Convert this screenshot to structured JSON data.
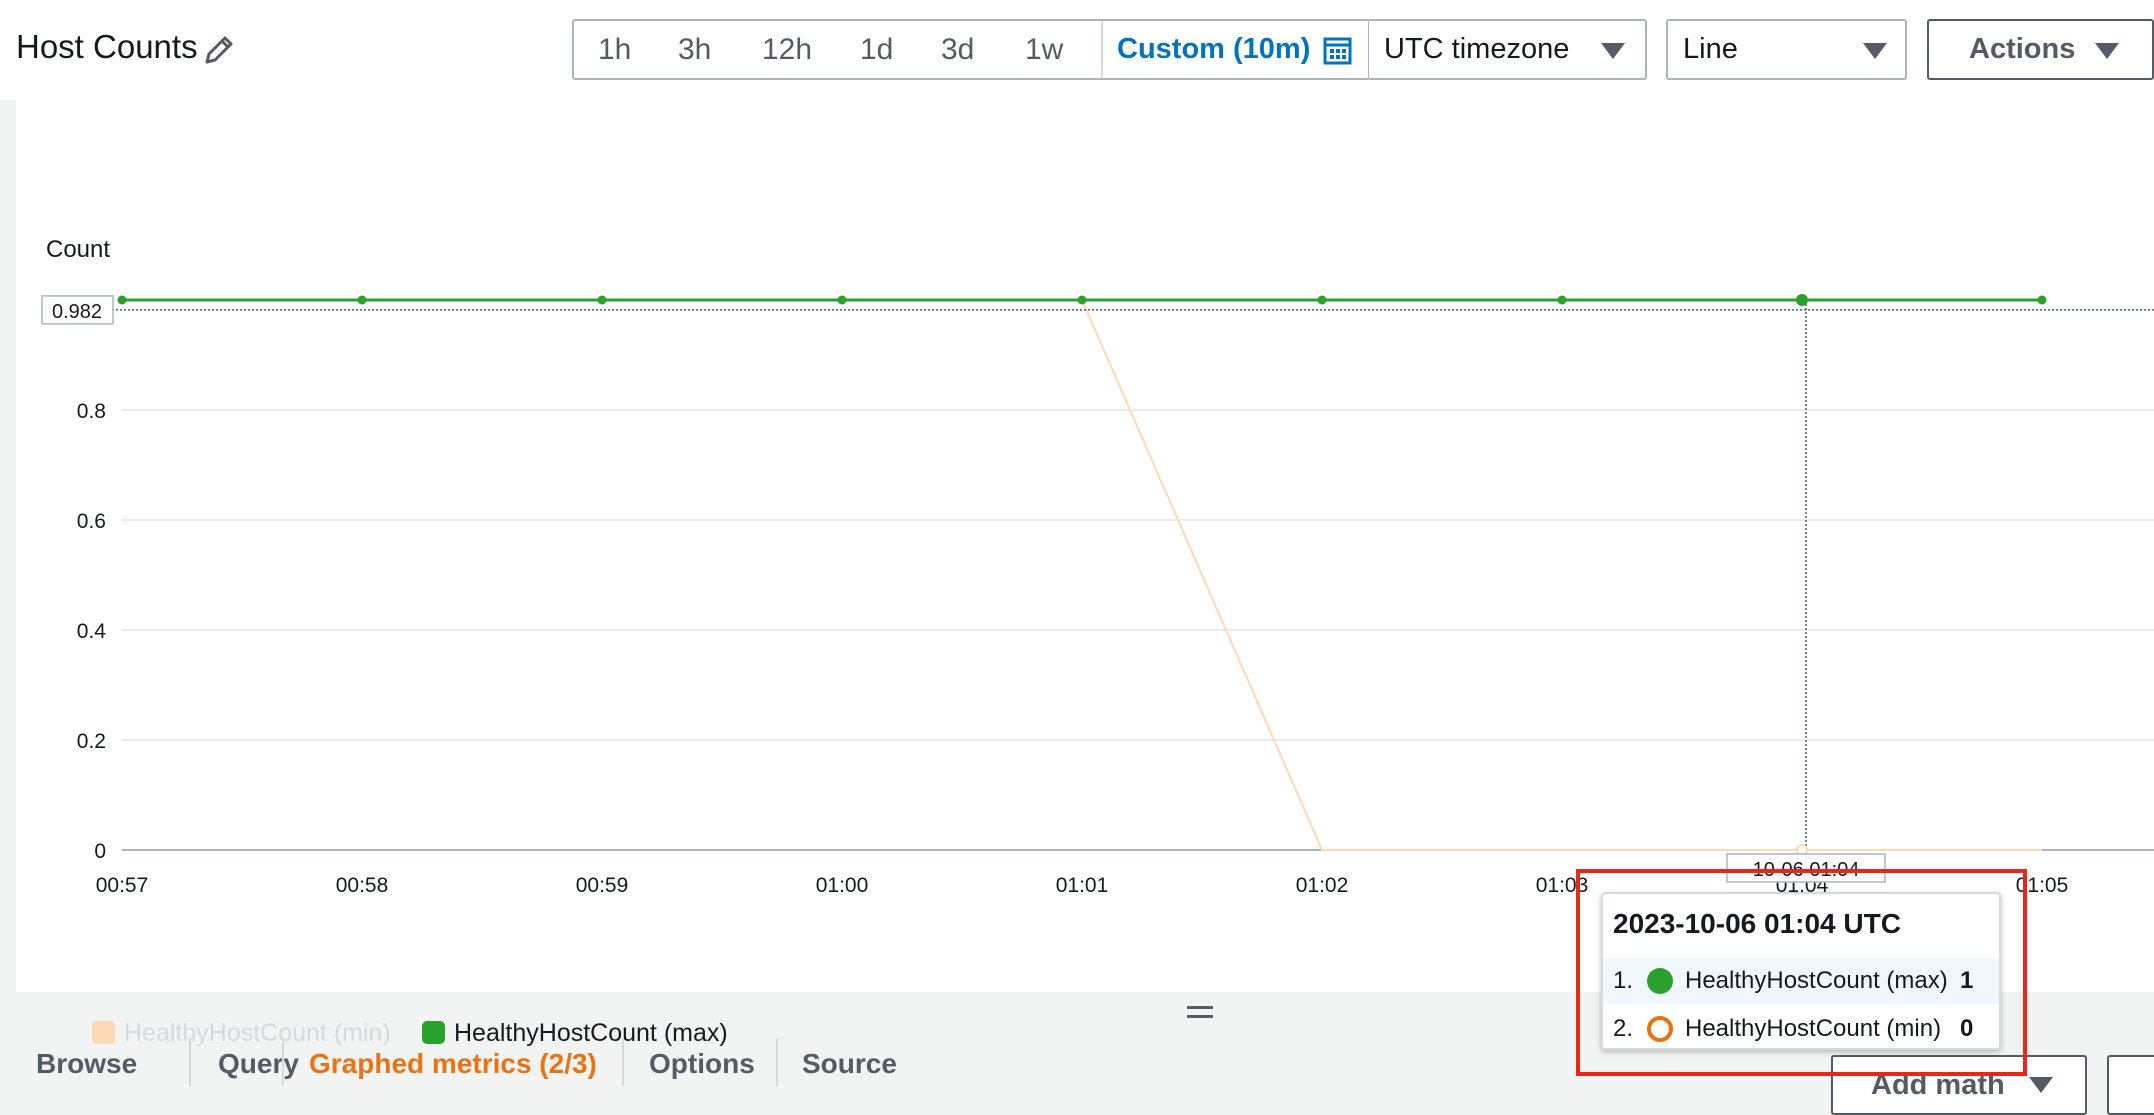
{
  "header": {
    "title": "Host Counts",
    "edit_icon": "pencil-icon",
    "time_ranges": [
      "1h",
      "3h",
      "12h",
      "1d",
      "3d",
      "1w"
    ],
    "custom_range": "Custom (10m)",
    "custom_icon": "calendar-icon",
    "timezone": "UTC timezone",
    "graph_type": "Line",
    "actions": "Actions"
  },
  "chart_data": {
    "type": "line",
    "ylabel": "Count",
    "ylim": [
      0,
      1
    ],
    "yticks": [
      "0",
      "0.2",
      "0.4",
      "0.6",
      "0.8"
    ],
    "x": [
      "00:57",
      "00:58",
      "00:59",
      "01:00",
      "01:01",
      "01:02",
      "01:03",
      "01:04",
      "01:05"
    ],
    "series": [
      {
        "name": "HealthyHostCount (min)",
        "values": [
          1,
          1,
          1,
          1,
          1,
          0,
          0,
          0,
          0
        ],
        "color": "#fdd9b5",
        "faded": true
      },
      {
        "name": "HealthyHostCount (max)",
        "values": [
          1,
          1,
          1,
          1,
          1,
          1,
          1,
          1,
          1
        ],
        "color": "#2ca02c",
        "faded": false
      }
    ],
    "crosshair": {
      "y_value_label": "0.982",
      "x_value_label": "10-06 01:04",
      "x_value": "01:04"
    },
    "grid": true,
    "legend_position": "bottom-left"
  },
  "tooltip": {
    "time": "2023-10-06 01:04 UTC",
    "rows": [
      {
        "index": "1.",
        "name": "HealthyHostCount (max)",
        "value": "1",
        "color": "#2ca02c",
        "marker": "filled"
      },
      {
        "index": "2.",
        "name": "HealthyHostCount (min)",
        "value": "0",
        "color": "#ec7211",
        "marker": "hollow"
      }
    ]
  },
  "tabs": [
    "Browse",
    "Query",
    "Graphed metrics (2/3)",
    "Options",
    "Source"
  ],
  "bottom_actions": {
    "add_math": "Add math"
  }
}
